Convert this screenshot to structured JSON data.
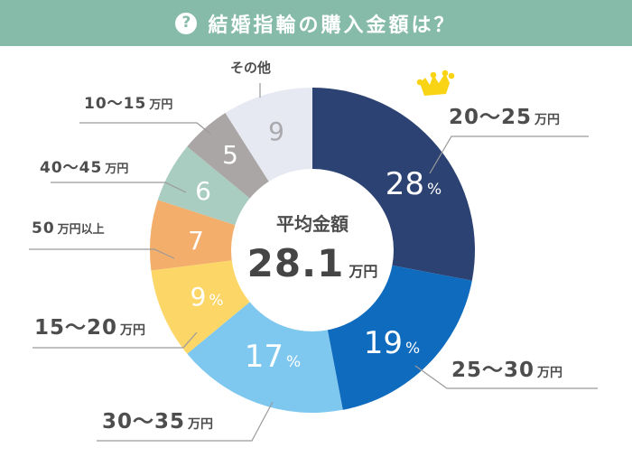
{
  "header": {
    "icon": "question-circle-icon",
    "title": "結婚指輪の購入金額は？",
    "background": "#86bba9"
  },
  "center": {
    "title": "平均金額",
    "value": "28.1",
    "unit": "万円"
  },
  "slices": [
    {
      "label_num": "20～25",
      "label_unit": "万円",
      "value": 28,
      "display": "28",
      "suffix": "%",
      "color": "#2c4272",
      "text_color": "#ffffff"
    },
    {
      "label_num": "25～30",
      "label_unit": "万円",
      "value": 19,
      "display": "19",
      "suffix": "%",
      "color": "#0e6bbd",
      "text_color": "#ffffff"
    },
    {
      "label_num": "30～35",
      "label_unit": "万円",
      "value": 17,
      "display": "17",
      "suffix": "%",
      "color": "#7ec7ef",
      "text_color": "#ffffff"
    },
    {
      "label_num": "15～20",
      "label_unit": "万円",
      "value": 9,
      "display": "9",
      "suffix": "%",
      "color": "#fdd668",
      "text_color": "#ffffff"
    },
    {
      "label_num": "50",
      "label_unit": "万円以上",
      "value": 7,
      "display": "7",
      "suffix": "",
      "color": "#f3ae6b",
      "text_color": "#ffffff"
    },
    {
      "label_num": "40～45",
      "label_unit": "万円",
      "value": 6,
      "display": "6",
      "suffix": "",
      "color": "#a9cdc0",
      "text_color": "#ffffff"
    },
    {
      "label_num": "10～15",
      "label_unit": "万円",
      "value": 5,
      "display": "5",
      "suffix": "",
      "color": "#aaa6a5",
      "text_color": "#ffffff"
    },
    {
      "label_num": "その他",
      "label_unit": "",
      "value": 9,
      "display": "9",
      "suffix": "",
      "color": "#e6e9f2",
      "text_color": "#a9a9ad"
    }
  ],
  "highlight_icon": "crown-icon",
  "chart_data": {
    "type": "pie",
    "title": "結婚指輪の購入金額は？",
    "subtitle": "平均金額 28.1万円",
    "categories": [
      "20～25万円",
      "25～30万円",
      "30～35万円",
      "15～20万円",
      "50万円以上",
      "40～45万円",
      "10～15万円",
      "その他"
    ],
    "values": [
      28,
      19,
      17,
      9,
      7,
      6,
      5,
      9
    ],
    "unit": "%",
    "donut": true,
    "annotations": [
      "平均金額 28.1万円",
      "crown on 20～25万円 (top)"
    ],
    "legend": "none (leader-line labels)"
  }
}
